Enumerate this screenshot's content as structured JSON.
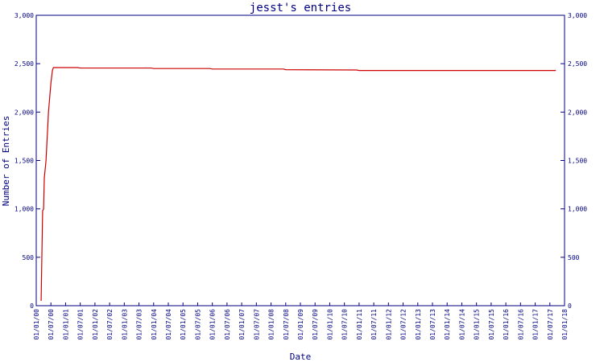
{
  "chart_data": {
    "type": "line",
    "title": "jesst's entries",
    "xlabel": "Date",
    "ylabel": "Number of Entries",
    "ylim": [
      0,
      3000
    ],
    "y_ticks": [
      {
        "value": 0,
        "label": "0"
      },
      {
        "value": 500,
        "label": "500"
      },
      {
        "value": 1000,
        "label": "1,000"
      },
      {
        "value": 1500,
        "label": "1,500"
      },
      {
        "value": 2000,
        "label": "2,000"
      },
      {
        "value": 2500,
        "label": "2,500"
      },
      {
        "value": 3000,
        "label": "3,000"
      }
    ],
    "x_tick_labels": [
      "01/01/00",
      "01/07/00",
      "01/01/01",
      "01/07/01",
      "01/01/02",
      "01/07/02",
      "01/01/03",
      "01/07/03",
      "01/01/04",
      "01/07/04",
      "01/01/05",
      "01/07/05",
      "01/01/06",
      "01/07/06",
      "01/01/07",
      "01/07/07",
      "01/01/08",
      "01/07/08",
      "01/01/09",
      "01/07/09",
      "01/01/10",
      "01/07/10",
      "01/01/11",
      "01/07/11",
      "01/01/12",
      "01/07/12",
      "01/01/13",
      "01/07/13",
      "01/01/14",
      "01/07/14",
      "01/01/15",
      "01/07/15",
      "01/01/16",
      "01/07/16",
      "01/01/17",
      "01/07/17",
      "01/01/18"
    ],
    "grid": false,
    "series": [
      {
        "color": "#cc0000",
        "points": [
          {
            "x": "2000-03-01",
            "y": 50
          },
          {
            "x": "2000-03-10",
            "y": 500
          },
          {
            "x": "2000-03-20",
            "y": 980
          },
          {
            "x": "2000-04-01",
            "y": 1000
          },
          {
            "x": "2000-04-10",
            "y": 1320
          },
          {
            "x": "2000-05-01",
            "y": 1500
          },
          {
            "x": "2000-06-01",
            "y": 2000
          },
          {
            "x": "2000-07-01",
            "y": 2300
          },
          {
            "x": "2000-07-20",
            "y": 2430
          },
          {
            "x": "2000-08-01",
            "y": 2460
          },
          {
            "x": "2001-06-01",
            "y": 2460
          },
          {
            "x": "2001-07-01",
            "y": 2455
          },
          {
            "x": "2003-12-01",
            "y": 2455
          },
          {
            "x": "2004-01-01",
            "y": 2450
          },
          {
            "x": "2005-12-01",
            "y": 2450
          },
          {
            "x": "2006-01-01",
            "y": 2445
          },
          {
            "x": "2008-06-01",
            "y": 2445
          },
          {
            "x": "2008-07-01",
            "y": 2438
          },
          {
            "x": "2010-12-01",
            "y": 2435
          },
          {
            "x": "2011-01-01",
            "y": 2430
          },
          {
            "x": "2014-01-01",
            "y": 2430
          },
          {
            "x": "2017-09-15",
            "y": 2430
          }
        ]
      }
    ]
  },
  "colors": {
    "axis": "#000080",
    "text": "#000080",
    "line": "#cc0000",
    "background": "#ffffff"
  }
}
